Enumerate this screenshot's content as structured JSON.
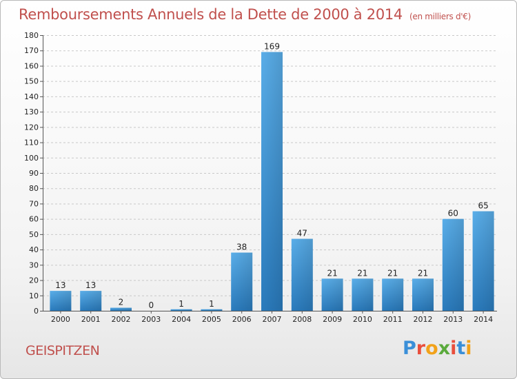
{
  "header": {
    "title": "Remboursements Annuels de la Dette de 2000 à 2014",
    "unit": "(en milliers d'€)"
  },
  "footer": {
    "commune": "GEISPITZEN",
    "logo_letters": [
      "P",
      "r",
      "o",
      "x",
      "i",
      "t",
      "i"
    ],
    "logo_colors": [
      "#3a8fd8",
      "#e94e3c",
      "#f2a21a",
      "#5aaa3c",
      "#e94e3c",
      "#3a8fd8",
      "#f2a21a"
    ]
  },
  "chart_data": {
    "type": "bar",
    "title": "Remboursements Annuels de la Dette de 2000 à 2014",
    "subtitle": "(en milliers d'€)",
    "xlabel": "",
    "ylabel": "",
    "categories": [
      "2000",
      "2001",
      "2002",
      "2003",
      "2004",
      "2005",
      "2006",
      "2007",
      "2008",
      "2009",
      "2010",
      "2011",
      "2012",
      "2013",
      "2014"
    ],
    "values": [
      13,
      13,
      2,
      0,
      1,
      1,
      38,
      169,
      47,
      21,
      21,
      21,
      21,
      60,
      65
    ],
    "ylim": [
      0,
      180
    ],
    "yticks": [
      0,
      10,
      20,
      30,
      40,
      50,
      60,
      70,
      80,
      90,
      100,
      110,
      120,
      130,
      140,
      150,
      160,
      170,
      180
    ],
    "grid": "horizontal-dashed",
    "bar_color_top": "#5aaee9",
    "bar_color_bottom": "#2a7bbd"
  }
}
